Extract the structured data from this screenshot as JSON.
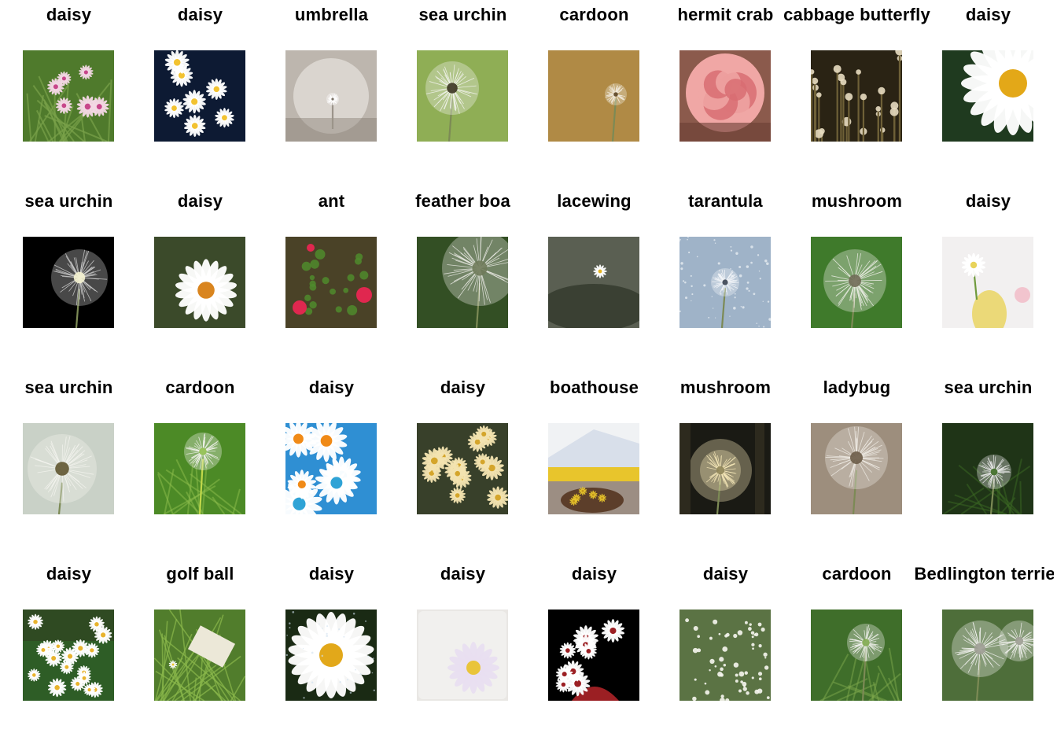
{
  "cells": [
    {
      "label": "daisy",
      "scene": "meadow-pink",
      "colors": [
        "#4f7a2c",
        "#f3d7e4",
        "#c7468a"
      ]
    },
    {
      "label": "daisy",
      "scene": "daisies-dark",
      "colors": [
        "#0d1a33",
        "#ffffff",
        "#f2c230"
      ]
    },
    {
      "label": "umbrella",
      "scene": "seed-grey",
      "colors": [
        "#bdb6ae",
        "#ece9e4",
        "#7d7469"
      ]
    },
    {
      "label": "sea urchin",
      "scene": "puff-green",
      "colors": [
        "#8fae55",
        "#f4f4f0",
        "#3a3320"
      ]
    },
    {
      "label": "cardoon",
      "scene": "puff-gold",
      "colors": [
        "#b08a45",
        "#f1eadc",
        "#5a4120"
      ]
    },
    {
      "label": "hermit crab",
      "scene": "rose",
      "colors": [
        "#8b5a4c",
        "#f0a7a5",
        "#d86d72"
      ]
    },
    {
      "label": "cabbage butterfly",
      "scene": "dots-dark",
      "colors": [
        "#2a2314",
        "#e7dcc0",
        "#6e6037"
      ]
    },
    {
      "label": "daisy",
      "scene": "daisy-yellow",
      "colors": [
        "#1f3a1f",
        "#ffffff",
        "#e3a818"
      ]
    },
    {
      "label": "sea urchin",
      "scene": "puff-black",
      "colors": [
        "#000000",
        "#cfcfcf",
        "#f4f2d0"
      ]
    },
    {
      "label": "daisy",
      "scene": "daisy-orange",
      "colors": [
        "#3b4a2a",
        "#ffffff",
        "#d9851f"
      ]
    },
    {
      "label": "ant",
      "scene": "roses-red",
      "colors": [
        "#4a4227",
        "#e0274f",
        "#4f8a2d"
      ]
    },
    {
      "label": "feather boa",
      "scene": "puff-side",
      "colors": [
        "#334f24",
        "#e8e8e2",
        "#6f7a5a"
      ]
    },
    {
      "label": "lacewing",
      "scene": "tiny-daisy",
      "colors": [
        "#5a5f52",
        "#ffffff",
        "#2c3327"
      ]
    },
    {
      "label": "tarantula",
      "scene": "puff-frost",
      "colors": [
        "#9fb3c8",
        "#f4f6f9",
        "#3a4251"
      ]
    },
    {
      "label": "mushroom",
      "scene": "puff-center",
      "colors": [
        "#3f7a2b",
        "#efefe8",
        "#6f6a55"
      ]
    },
    {
      "label": "daisy",
      "scene": "hand-daisy",
      "colors": [
        "#f2f0f0",
        "#d0908a",
        "#e8d35a"
      ]
    },
    {
      "label": "sea urchin",
      "scene": "puff-white",
      "colors": [
        "#c9d1c7",
        "#f4f4ef",
        "#5f5530"
      ]
    },
    {
      "label": "cardoon",
      "scene": "puff-grass",
      "colors": [
        "#4c8a26",
        "#f3f3ee",
        "#8fbf4d"
      ]
    },
    {
      "label": "daisy",
      "scene": "daisy-blue",
      "colors": [
        "#2f8fd3",
        "#ffffff",
        "#f08a17"
      ]
    },
    {
      "label": "daisy",
      "scene": "daisy-field",
      "colors": [
        "#38402a",
        "#f3e3b0",
        "#d4a52b"
      ]
    },
    {
      "label": "boathouse",
      "scene": "building",
      "colors": [
        "#4f5d73",
        "#d8dfea",
        "#e8c52c"
      ]
    },
    {
      "label": "mushroom",
      "scene": "puff-sunset",
      "colors": [
        "#1a1a14",
        "#f6e8b8",
        "#8e8458"
      ]
    },
    {
      "label": "ladybug",
      "scene": "puff-soft",
      "colors": [
        "#9d8e7d",
        "#efebe4",
        "#6b5c48"
      ]
    },
    {
      "label": "sea urchin",
      "scene": "puff-night",
      "colors": [
        "#1f3417",
        "#ececec",
        "#3c6a23"
      ]
    },
    {
      "label": "daisy",
      "scene": "daisy-meadow",
      "colors": [
        "#2e5d26",
        "#ffffff",
        "#e8b32d"
      ]
    },
    {
      "label": "golf ball",
      "scene": "sign-grass",
      "colors": [
        "#517d2c",
        "#ece8d8",
        "#2b3a18"
      ]
    },
    {
      "label": "daisy",
      "scene": "daisy-wet",
      "colors": [
        "#1a2a14",
        "#ffffff",
        "#e2a81a"
      ]
    },
    {
      "label": "daisy",
      "scene": "daisy-pale",
      "colors": [
        "#e9e7e4",
        "#e8dff0",
        "#e9c43a"
      ]
    },
    {
      "label": "daisy",
      "scene": "daisy-bunch",
      "colors": [
        "#000000",
        "#ffffff",
        "#9b1f23"
      ]
    },
    {
      "label": "daisy",
      "scene": "white-dots",
      "colors": [
        "#5b7344",
        "#f6f6f0",
        "#43562f"
      ]
    },
    {
      "label": "cardoon",
      "scene": "puff-green2",
      "colors": [
        "#3f6e2a",
        "#f2f2ee",
        "#7ea84c"
      ]
    },
    {
      "label": "Bedlington terrier",
      "scene": "puff-two",
      "colors": [
        "#4e6e3a",
        "#f1f1ee",
        "#9c9c92"
      ]
    }
  ]
}
